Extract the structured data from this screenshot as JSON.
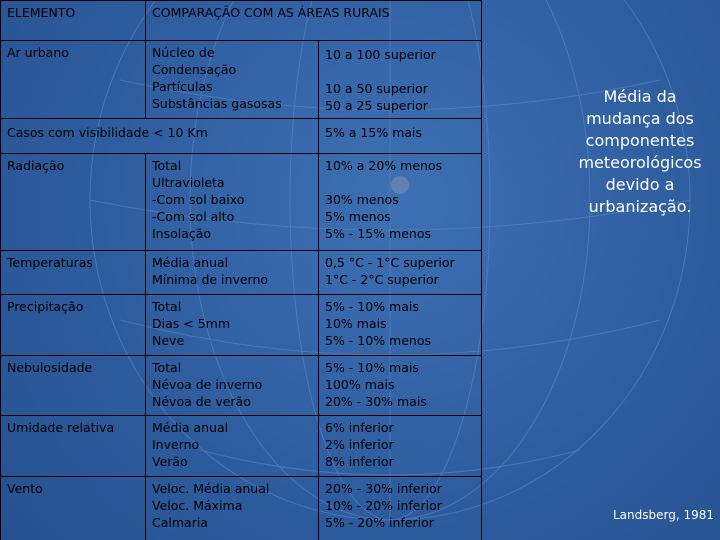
{
  "table": {
    "header": [
      "ELEMENTO",
      "COMPARAÇÃO COM AS ÁREAS RURAIS"
    ],
    "rows": [
      [
        [
          [
            "Ar urbano"
          ]
        ],
        [
          [
            "Núcleo de",
            "Condensação",
            "Partículas",
            "Substâncias gasosas"
          ]
        ],
        [
          [
            "10 a 100 superior"
          ],
          [
            "10 a 50 superior",
            "50 a 25 superior"
          ]
        ]
      ],
      [
        [
          [
            "Casos com visibilidade < 10 Km"
          ]
        ],
        [
          [
            "5% a 15% mais"
          ]
        ]
      ],
      [
        [
          [
            "Radiação"
          ]
        ],
        [
          [
            "Total",
            "Ultravioleta",
            "-Com sol baixo",
            "-Com sol alto",
            "Insolação"
          ]
        ],
        [
          [
            "10% a 20% menos"
          ],
          [
            "30% menos",
            "5% menos",
            "5% - 15% menos"
          ]
        ]
      ],
      [
        [
          [
            "Temperaturas"
          ]
        ],
        [
          [
            "Média anual",
            "Mínima de inverno"
          ]
        ],
        [
          [
            "0,5 °C - 1°C superior",
            "1°C - 2°C superior"
          ]
        ]
      ],
      [
        [
          [
            "Precipitação"
          ]
        ],
        [
          [
            "Total",
            "Dias < 5mm",
            "Neve"
          ]
        ],
        [
          [
            "5% - 10% mais",
            "10% mais",
            "5% - 10% menos"
          ]
        ]
      ],
      [
        [
          [
            "Nebulosidade"
          ]
        ],
        [
          [
            "Total",
            "Névoa de inverno",
            "Névoa de verão"
          ]
        ],
        [
          [
            "5% - 10% mais",
            "100% mais",
            "20% - 30% mais"
          ]
        ]
      ],
      [
        [
          [
            "Umidade relativa"
          ]
        ],
        [
          [
            "Média anual",
            "Inverno",
            "Verão"
          ]
        ],
        [
          [
            "6% inferior",
            "2% inferior",
            "8% inferior"
          ]
        ]
      ],
      [
        [
          [
            "Vento"
          ]
        ],
        [
          [
            "Veloc. Média anual",
            "Veloc. Máxima",
            "Calmaria"
          ]
        ],
        [
          [
            "20% - 30% inferior",
            "10% - 20% inferior",
            "5% - 20% inferior"
          ]
        ]
      ]
    ]
  },
  "side_note": "Média da mudança dos componentes meteorológicos devido a urbanização.",
  "citation": "Landsberg, 1981"
}
